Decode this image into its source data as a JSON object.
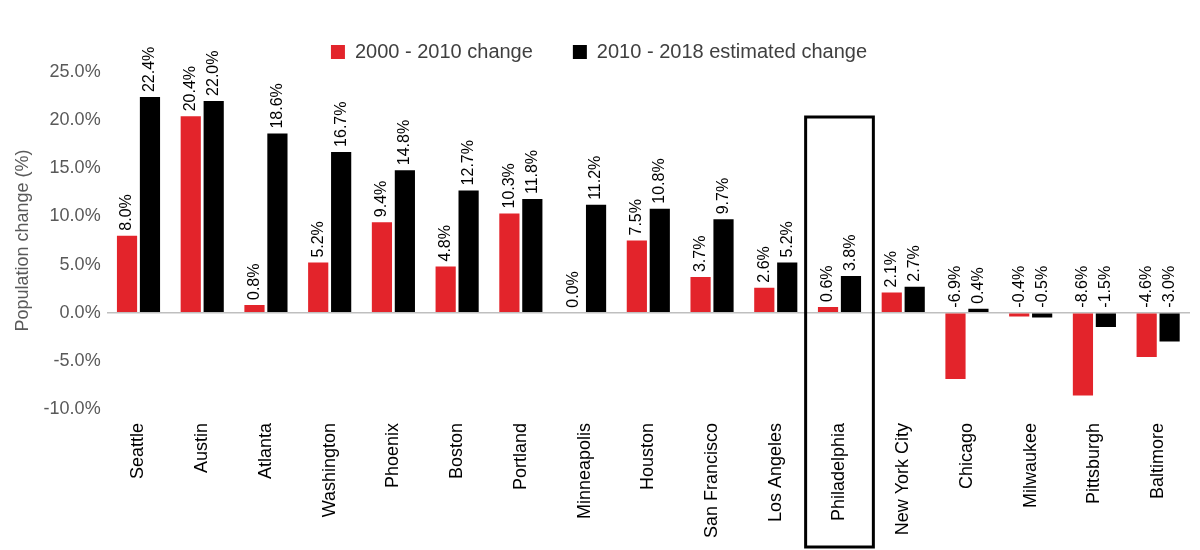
{
  "chart_data": {
    "type": "bar",
    "categories": [
      "Seattle",
      "Austin",
      "Atlanta",
      "Washington",
      "Phoenix",
      "Boston",
      "Portland",
      "Minneapolis",
      "Houston",
      "San Francisco",
      "Los Angeles",
      "Philadelphia",
      "New York City",
      "Chicago",
      "Milwaukee",
      "Pittsburgh",
      "Baltimore"
    ],
    "series": [
      {
        "name": "2000 - 2010 change",
        "color": "#e3242b",
        "values": [
          8.0,
          20.4,
          0.8,
          5.2,
          9.4,
          4.8,
          10.3,
          0.0,
          7.5,
          3.7,
          2.6,
          0.6,
          2.1,
          -6.9,
          -0.4,
          -8.6,
          -4.6
        ],
        "value_labels": [
          "8.0%",
          "20.4%",
          "0.8%",
          "5.2%",
          "9.4%",
          "4.8%",
          "10.3%",
          "0.0%",
          "7.5%",
          "3.7%",
          "2.6%",
          "0.6%",
          "2.1%",
          "-6.9%",
          "-0.4%",
          "-8.6%",
          "-4.6%"
        ]
      },
      {
        "name": "2010 - 2018 estimated change",
        "color": "#000000",
        "values": [
          22.4,
          22.0,
          18.6,
          16.7,
          14.8,
          12.7,
          11.8,
          11.2,
          10.8,
          9.7,
          5.2,
          3.8,
          2.7,
          0.4,
          -0.5,
          -1.5,
          -3.0
        ],
        "value_labels": [
          "22.4%",
          "22.0%",
          "18.6%",
          "16.7%",
          "14.8%",
          "12.7%",
          "11.8%",
          "11.2%",
          "10.8%",
          "9.7%",
          "5.2%",
          "3.8%",
          "2.7%",
          "0.4%",
          "-0.5%",
          "-1.5%",
          "-3.0%"
        ]
      }
    ],
    "y_label": "Population change (%)",
    "ylim": [
      -10,
      25
    ],
    "yticks": [
      {
        "value": -10,
        "label": "-10.0%"
      },
      {
        "value": -5,
        "label": "-5.0%"
      },
      {
        "value": 0,
        "label": "0.0%"
      },
      {
        "value": 5,
        "label": "5.0%"
      },
      {
        "value": 10,
        "label": "10.0%"
      },
      {
        "value": 15,
        "label": "15.0%"
      },
      {
        "value": 20,
        "label": "20.0%"
      },
      {
        "value": 25,
        "label": "25.0%"
      }
    ],
    "grid": false,
    "legend": "top",
    "data_labels": true
  }
}
